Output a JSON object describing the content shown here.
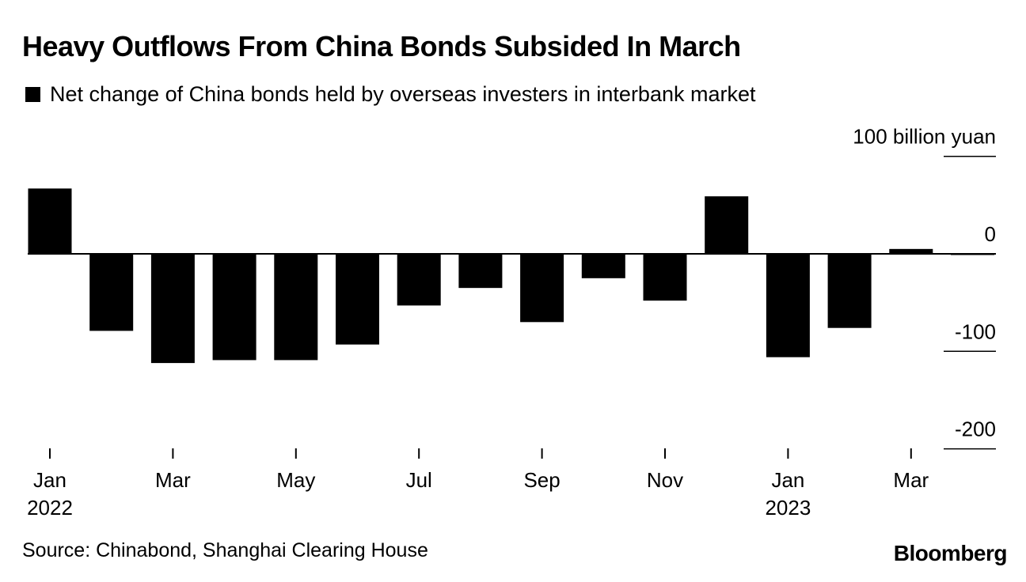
{
  "title": "Heavy Outflows From China Bonds Subsided In March",
  "legend": {
    "label": "Net change of China bonds held by overseas investers in interbank market",
    "color": "#000000"
  },
  "source": "Source: Chinabond, Shanghai Clearing House",
  "brand": "Bloomberg",
  "chart_data": {
    "type": "bar",
    "title": "Heavy Outflows From China Bonds Subsided In March",
    "series": [
      {
        "name": "Net change of China bonds held by overseas investers in interbank market",
        "color": "#000000",
        "values": [
          67,
          -79,
          -112,
          -109,
          -109,
          -93,
          -53,
          -35,
          -70,
          -25,
          -48,
          59,
          -106,
          -76,
          5,
          -1
        ]
      }
    ],
    "categories": [
      "2022-01",
      "2022-02",
      "2022-03",
      "2022-04",
      "2022-05",
      "2022-06",
      "2022-07",
      "2022-08",
      "2022-09",
      "2022-10",
      "2022-11",
      "2022-12",
      "2023-01",
      "2023-02",
      "2023-03",
      "2023-04"
    ],
    "xticks": [
      {
        "index": 0,
        "label": "Jan",
        "year": "2022"
      },
      {
        "index": 2,
        "label": "Mar",
        "year": ""
      },
      {
        "index": 4,
        "label": "May",
        "year": ""
      },
      {
        "index": 6,
        "label": "Jul",
        "year": ""
      },
      {
        "index": 8,
        "label": "Sep",
        "year": ""
      },
      {
        "index": 10,
        "label": "Nov",
        "year": ""
      },
      {
        "index": 12,
        "label": "Jan",
        "year": "2023"
      },
      {
        "index": 14,
        "label": "Mar",
        "year": ""
      }
    ],
    "yticks": [
      {
        "value": 100,
        "label": "100 billion yuan"
      },
      {
        "value": 0,
        "label": "0"
      },
      {
        "value": -100,
        "label": "-100"
      },
      {
        "value": -200,
        "label": "-200"
      }
    ],
    "ylim": [
      -200,
      100
    ],
    "ylabel": "billion yuan",
    "xlabel": ""
  }
}
